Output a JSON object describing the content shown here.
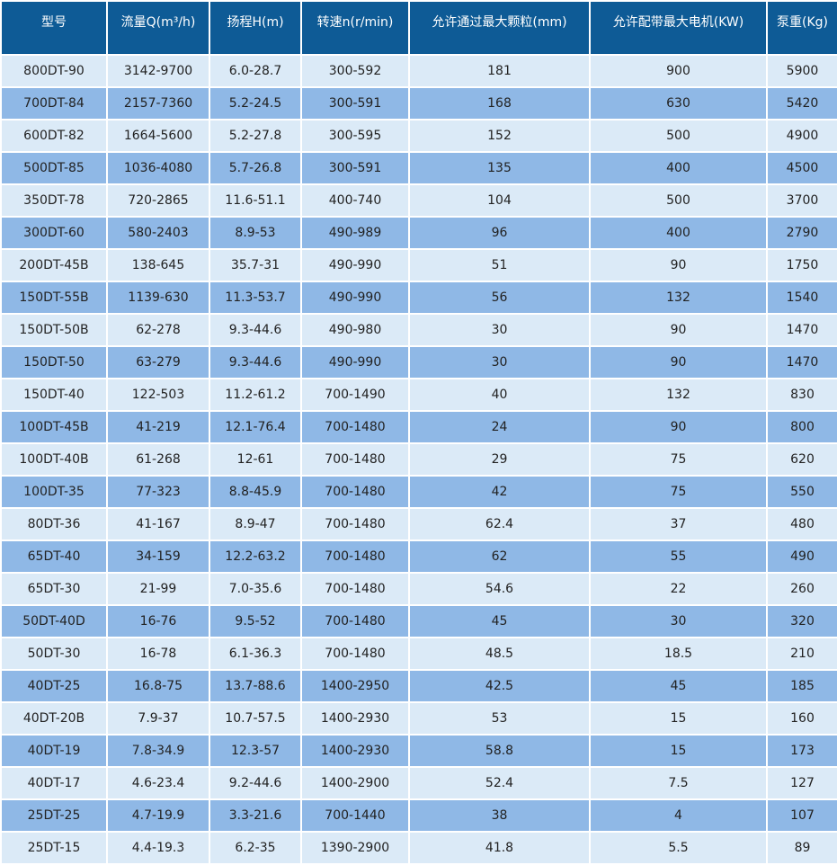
{
  "headers": [
    "型号",
    "流量Q(m³/h)",
    "扬程H(m)",
    "转速n(r/min)",
    "允许通过最大颗粒(mm)",
    "允许配带最大电机(KW)",
    "泵重(Kg)"
  ],
  "rows": [
    [
      "800DT-90",
      "3142-9700",
      "6.0-28.7",
      "300-592",
      "181",
      "900",
      "5900"
    ],
    [
      "700DT-84",
      "2157-7360",
      "5.2-24.5",
      "300-591",
      "168",
      "630",
      "5420"
    ],
    [
      "600DT-82",
      "1664-5600",
      "5.2-27.8",
      "300-595",
      "152",
      "500",
      "4900"
    ],
    [
      "500DT-85",
      "1036-4080",
      "5.7-26.8",
      "300-591",
      "135",
      "400",
      "4500"
    ],
    [
      "350DT-78",
      "720-2865",
      "11.6-51.1",
      "400-740",
      "104",
      "500",
      "3700"
    ],
    [
      "300DT-60",
      "580-2403",
      "8.9-53",
      "490-989",
      "96",
      "400",
      "2790"
    ],
    [
      "200DT-45B",
      "138-645",
      "35.7-31",
      "490-990",
      "51",
      "90",
      "1750"
    ],
    [
      "150DT-55B",
      "1139-630",
      "11.3-53.7",
      "490-990",
      "56",
      "132",
      "1540"
    ],
    [
      "150DT-50B",
      "62-278",
      "9.3-44.6",
      "490-980",
      "30",
      "90",
      "1470"
    ],
    [
      "150DT-50",
      "63-279",
      "9.3-44.6",
      "490-990",
      "30",
      "90",
      "1470"
    ],
    [
      "150DT-40",
      "122-503",
      "11.2-61.2",
      "700-1490",
      "40",
      "132",
      "830"
    ],
    [
      "100DT-45B",
      "41-219",
      "12.1-76.4",
      "700-1480",
      "24",
      "90",
      "800"
    ],
    [
      "100DT-40B",
      "61-268",
      "12-61",
      "700-1480",
      "29",
      "75",
      "620"
    ],
    [
      "100DT-35",
      "77-323",
      "8.8-45.9",
      "700-1480",
      "42",
      "75",
      "550"
    ],
    [
      "80DT-36",
      "41-167",
      "8.9-47",
      "700-1480",
      "62.4",
      "37",
      "480"
    ],
    [
      "65DT-40",
      "34-159",
      "12.2-63.2",
      "700-1480",
      "62",
      "55",
      "490"
    ],
    [
      "65DT-30",
      "21-99",
      "7.0-35.6",
      "700-1480",
      "54.6",
      "22",
      "260"
    ],
    [
      "50DT-40D",
      "16-76",
      "9.5-52",
      "700-1480",
      "45",
      "30",
      "320"
    ],
    [
      "50DT-30",
      "16-78",
      "6.1-36.3",
      "700-1480",
      "48.5",
      "18.5",
      "210"
    ],
    [
      "40DT-25",
      "16.8-75",
      "13.7-88.6",
      "1400-2950",
      "42.5",
      "45",
      "185"
    ],
    [
      "40DT-20B",
      "7.9-37",
      "10.7-57.5",
      "1400-2930",
      "53",
      "15",
      "160"
    ],
    [
      "40DT-19",
      "7.8-34.9",
      "12.3-57",
      "1400-2930",
      "58.8",
      "15",
      "173"
    ],
    [
      "40DT-17",
      "4.6-23.4",
      "9.2-44.6",
      "1400-2900",
      "52.4",
      "7.5",
      "127"
    ],
    [
      "25DT-25",
      "4.7-19.9",
      "3.3-21.6",
      "700-1440",
      "38",
      "4",
      "107"
    ],
    [
      "25DT-15",
      "4.4-19.3",
      "6.2-35",
      "1390-2900",
      "41.8",
      "5.5",
      "89"
    ]
  ]
}
